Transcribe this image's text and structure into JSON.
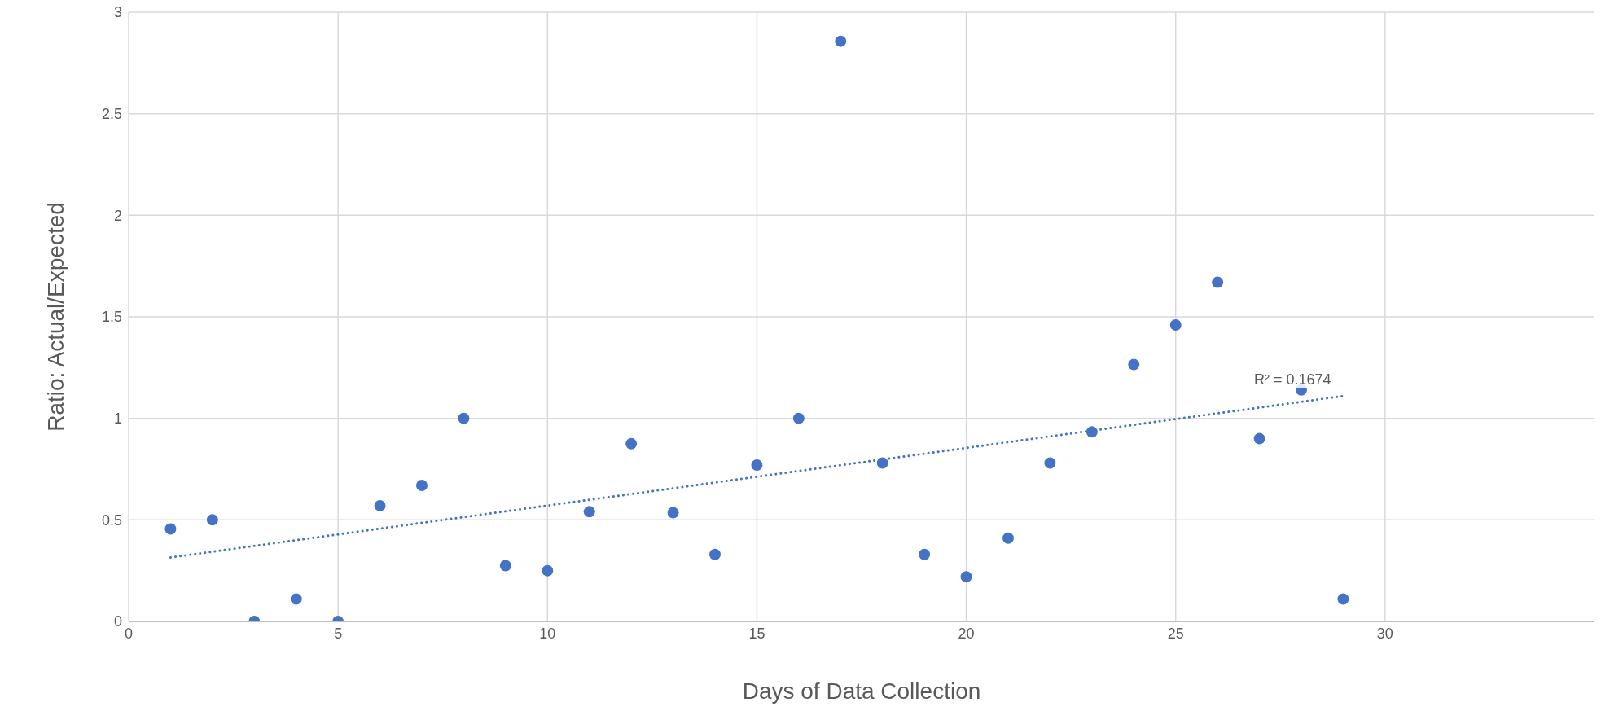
{
  "chart_data": {
    "type": "scatter",
    "xlabel": "Days of Data Collection",
    "ylabel": "Ratio: Actual/Expected",
    "xlim": [
      0,
      35
    ],
    "xticks": [
      0,
      5,
      10,
      15,
      20,
      25,
      30
    ],
    "ylim": [
      0,
      3
    ],
    "yticks": [
      0,
      0.5,
      1,
      1.5,
      2,
      2.5,
      3
    ],
    "grid": true,
    "marker": "circle",
    "annotations": [
      "R² = 0.1674"
    ],
    "series": [
      {
        "color": "#4472c4",
        "x": [
          1,
          2,
          3,
          4,
          5,
          6,
          7,
          8,
          9,
          10,
          11,
          12,
          13,
          14,
          15,
          16,
          17,
          18,
          19,
          20,
          21,
          22,
          23,
          24,
          25,
          26,
          27,
          28,
          29
        ],
        "values": [
          0.455,
          0.5,
          0,
          0.11,
          0,
          0.57,
          0.67,
          1,
          0.275,
          0.25,
          0.54,
          0.875,
          0.535,
          0.33,
          0.77,
          1,
          2.857,
          0.78,
          0.33,
          0.22,
          0.41,
          0.78,
          0.933,
          1.265,
          1.46,
          1.67,
          0.9,
          1.14,
          0.11
        ]
      },
      {
        "type": "line",
        "color": "#4472c4",
        "line_style": "dotted",
        "marker": "none",
        "x": [
          1,
          29
        ],
        "values": [
          0.315,
          1.11
        ]
      }
    ]
  }
}
